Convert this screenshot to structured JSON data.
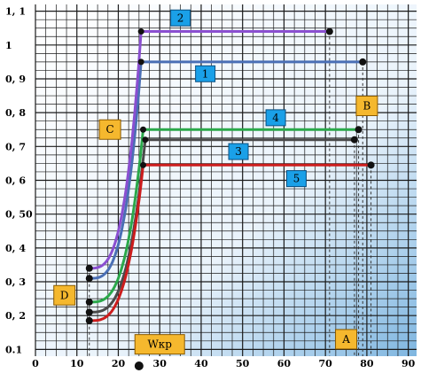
{
  "chart_data": {
    "type": "line",
    "title": "",
    "xlabel": "",
    "ylabel": "",
    "xlim": [
      0,
      92
    ],
    "ylim": [
      0.08,
      1.12
    ],
    "grid": true,
    "x_ticks": [
      0,
      10,
      20,
      30,
      40,
      50,
      60,
      70,
      80,
      90
    ],
    "x_tick_labels": [
      "0",
      "10",
      "20",
      "30",
      "40",
      "50",
      "60",
      "70",
      "80",
      "90"
    ],
    "y_ticks": [
      0.1,
      0.2,
      0.3,
      0.4,
      0.5,
      0.6,
      0.7,
      0.8,
      0.9,
      1.0,
      1.1
    ],
    "y_tick_labels": [
      "0.1",
      "0, 2",
      "0, 3",
      "0, 4",
      "0, 50",
      "0, 6",
      "0, 7",
      "0, 8",
      "0, 9",
      "1",
      "1, 1"
    ],
    "series": [
      {
        "name": "1",
        "color": "#4a6fb5",
        "start": [
          13,
          0.31
        ],
        "knee_x": 25.5,
        "plateau_y": 0.95,
        "end_x": 79
      },
      {
        "name": "2",
        "color": "#8a4fd0",
        "start": [
          13,
          0.34
        ],
        "knee_x": 25.5,
        "plateau_y": 1.04,
        "end_x": 71
      },
      {
        "name": "3",
        "color": "#4a4a4a",
        "start": [
          13,
          0.21
        ],
        "knee_x": 26.5,
        "plateau_y": 0.72,
        "end_x": 77
      },
      {
        "name": "4",
        "color": "#2aa84a",
        "start": [
          13,
          0.24
        ],
        "knee_x": 26,
        "plateau_y": 0.75,
        "end_x": 78
      },
      {
        "name": "5",
        "color": "#cc1c1c",
        "start": [
          13,
          0.185
        ],
        "knee_x": 26,
        "plateau_y": 0.645,
        "end_x": 81
      }
    ],
    "series_labels": [
      {
        "text": "2",
        "x": 35,
        "y": 1.08
      },
      {
        "text": "1",
        "x": 41,
        "y": 0.915
      },
      {
        "text": "4",
        "x": 58,
        "y": 0.785
      },
      {
        "text": "3",
        "x": 49,
        "y": 0.685
      },
      {
        "text": "5",
        "x": 63,
        "y": 0.605
      }
    ],
    "point_labels": [
      {
        "text": "A",
        "x": 75,
        "y": 0.13
      },
      {
        "text": "B",
        "x": 80,
        "y": 0.82
      },
      {
        "text": "C",
        "x": 18,
        "y": 0.75
      },
      {
        "text": "D",
        "x": 7,
        "y": 0.26
      },
      {
        "text": "Wкр",
        "x": 30,
        "y": 0.115
      }
    ],
    "dashed_verticals": [
      13,
      71,
      77,
      78,
      79,
      81
    ],
    "w_marker_x": 25
  }
}
